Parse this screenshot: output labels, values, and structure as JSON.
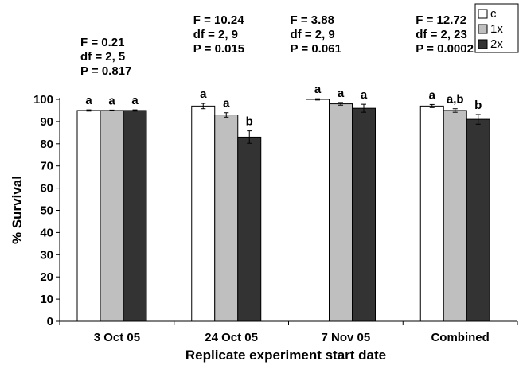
{
  "chart_data": {
    "type": "bar",
    "title": "",
    "xlabel": "Replicate experiment start date",
    "ylabel": "% Survival",
    "ylim": [
      0,
      100
    ],
    "yticks": [
      0,
      10,
      20,
      30,
      40,
      50,
      60,
      70,
      80,
      90,
      100
    ],
    "categories": [
      "3 Oct 05",
      "24 Oct 05",
      "7 Nov 05",
      "Combined"
    ],
    "series": [
      {
        "name": "c",
        "color": "#ffffff",
        "values": [
          95,
          97,
          100,
          97
        ],
        "errors": [
          0.3,
          1.2,
          0.3,
          0.7
        ],
        "labels": [
          "a",
          "a",
          "a",
          "a"
        ]
      },
      {
        "name": "1x",
        "color": "#bfbfbf",
        "values": [
          95,
          93,
          98,
          95
        ],
        "errors": [
          0.2,
          1.0,
          0.6,
          0.8
        ],
        "labels": [
          "a",
          "a",
          "a",
          "a,b"
        ]
      },
      {
        "name": "2x",
        "color": "#333333",
        "values": [
          95,
          83,
          96,
          91
        ],
        "errors": [
          0.3,
          2.8,
          1.8,
          2.2
        ],
        "labels": [
          "a",
          "b",
          "a",
          "b"
        ]
      }
    ],
    "stats": [
      {
        "category": "3 Oct 05",
        "f": "F = 0.21",
        "df": "df = 2, 5",
        "p": "P = 0.817"
      },
      {
        "category": "24 Oct 05",
        "f": "F = 10.24",
        "df": "df = 2, 9",
        "p": "P = 0.015"
      },
      {
        "category": "7 Nov 05",
        "f": "F = 3.88",
        "df": "df = 2, 9",
        "p": "P = 0.061"
      },
      {
        "category": "Combined",
        "f": "F = 12.72",
        "df": "df = 2, 23",
        "p": "P = 0.0002"
      }
    ],
    "legend_position": "top-right",
    "grid": false
  }
}
